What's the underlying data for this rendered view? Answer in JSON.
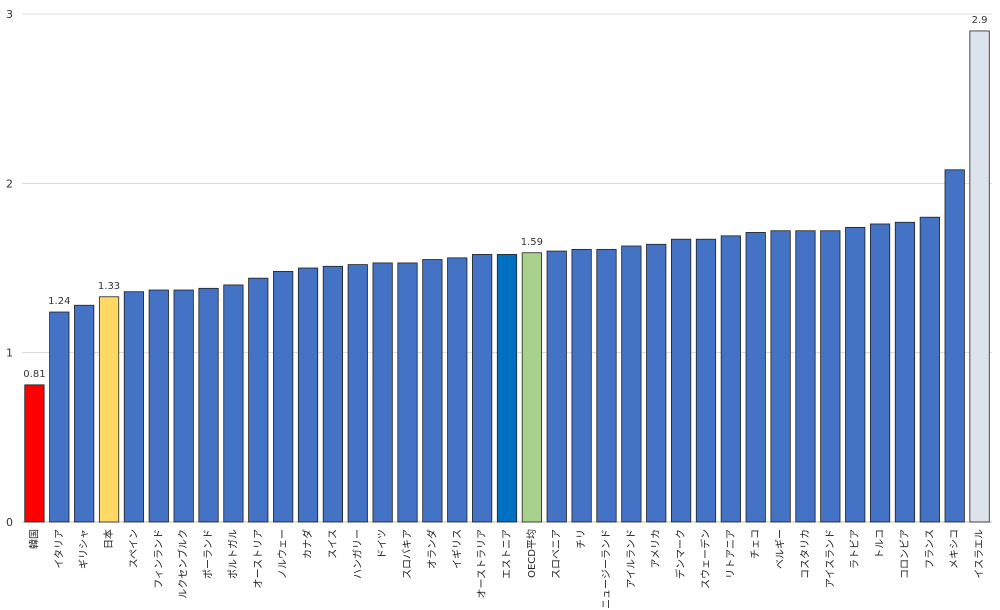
{
  "chart_data": {
    "type": "bar",
    "title": "",
    "xlabel": "",
    "ylabel": "",
    "ylim": [
      0,
      3
    ],
    "yticks": [
      0,
      1,
      2,
      3
    ],
    "grid": true,
    "legend": "none",
    "categories": [
      "韓国",
      "イタリア",
      "ギリシャ",
      "日本",
      "スペイン",
      "フィンランド",
      "ルクセンブルク",
      "ポーランド",
      "ポルトガル",
      "オーストリア",
      "ノルウェー",
      "カナダ",
      "スイス",
      "ハンガリー",
      "ドイツ",
      "スロバキア",
      "オランダ",
      "イギリス",
      "オーストラリア",
      "エストニア",
      "OECD平均",
      "スロベニア",
      "チリ",
      "ニュージーランド",
      "アイルランド",
      "アメリカ",
      "デンマーク",
      "スウェーデン",
      "リトアニア",
      "チェコ",
      "ベルギー",
      "コスタリカ",
      "アイスランド",
      "ラトビア",
      "トルコ",
      "コロンビア",
      "フランス",
      "メキシコ",
      "イスラエル"
    ],
    "values": [
      0.81,
      1.24,
      1.28,
      1.33,
      1.36,
      1.37,
      1.37,
      1.38,
      1.4,
      1.44,
      1.48,
      1.5,
      1.51,
      1.52,
      1.53,
      1.53,
      1.55,
      1.56,
      1.58,
      1.58,
      1.59,
      1.6,
      1.61,
      1.61,
      1.63,
      1.64,
      1.67,
      1.67,
      1.69,
      1.71,
      1.72,
      1.72,
      1.72,
      1.74,
      1.76,
      1.77,
      1.8,
      2.08,
      2.9
    ],
    "colors": [
      "#ff0000",
      "#4472c4",
      "#4472c4",
      "#ffd966",
      "#4472c4",
      "#4472c4",
      "#4472c4",
      "#4472c4",
      "#4472c4",
      "#4472c4",
      "#4472c4",
      "#4472c4",
      "#4472c4",
      "#4472c4",
      "#4472c4",
      "#4472c4",
      "#4472c4",
      "#4472c4",
      "#4472c4",
      "#0070c0",
      "#a9d18e",
      "#4472c4",
      "#4472c4",
      "#4472c4",
      "#4472c4",
      "#4472c4",
      "#4472c4",
      "#4472c4",
      "#4472c4",
      "#4472c4",
      "#4472c4",
      "#4472c4",
      "#4472c4",
      "#4472c4",
      "#4472c4",
      "#4472c4",
      "#4472c4",
      "#4472c4",
      "#dce3ed"
    ],
    "data_labels": {
      "0": "0.81",
      "1": "1.24",
      "3": "1.33",
      "20": "1.59",
      "38": "2.9"
    }
  }
}
